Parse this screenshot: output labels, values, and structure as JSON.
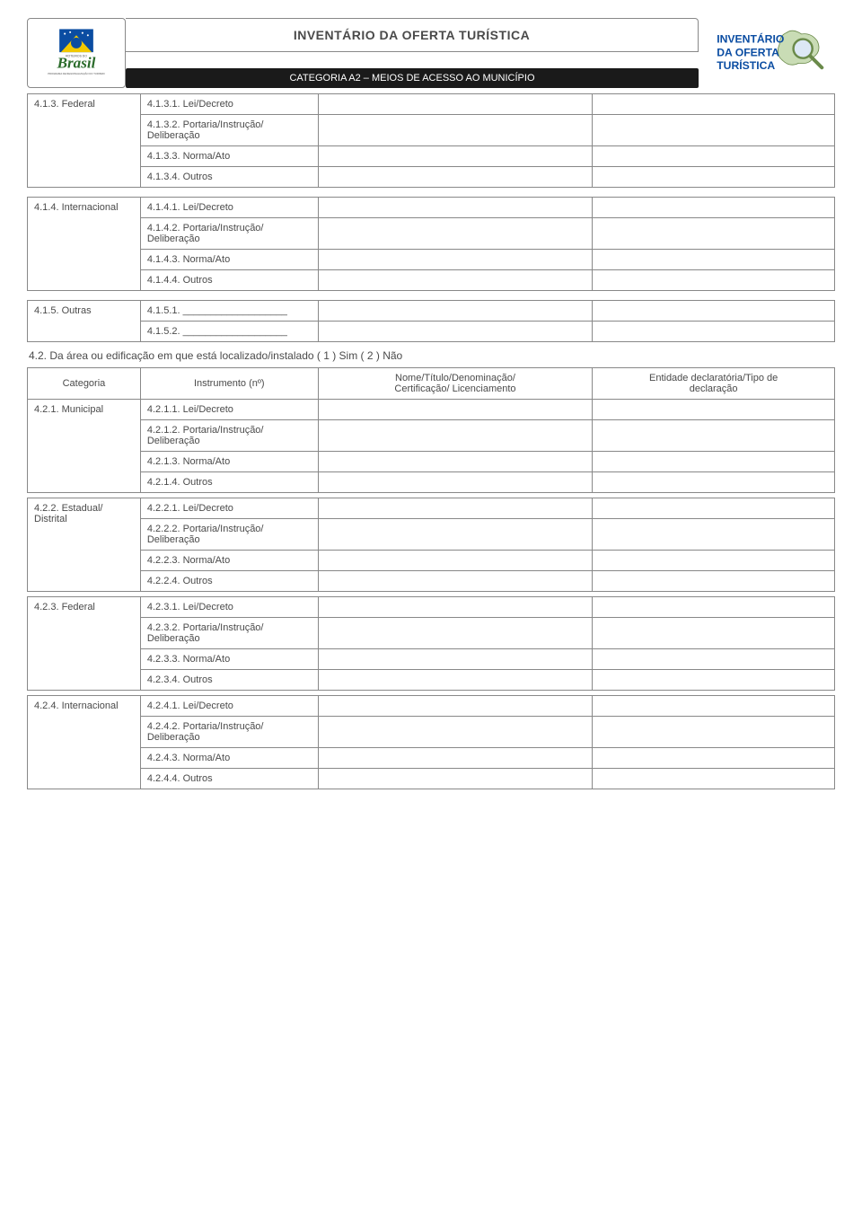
{
  "header": {
    "title": "INVENTÁRIO DA OFERTA TURÍSTICA",
    "subtitle": "CATEGORIA A2 – MEIOS DE ACESSO AO MUNICÍPIO",
    "right_logo_line1": "INVENTÁRIO",
    "right_logo_line2": "DA OFERTA",
    "right_logo_line3": "TURÍSTICA",
    "left_logo_text": "Brasil"
  },
  "section41": {
    "rows": [
      {
        "cat": "4.1.3.  Federal",
        "items": [
          "4.1.3.1. Lei/Decreto",
          "4.1.3.2. Portaria/Instrução/\n Deliberação",
          "4.1.3.3. Norma/Ato",
          "4.1.3.4. Outros"
        ]
      },
      {
        "cat": "4.1.4.  Internacional",
        "items": [
          "4.1.4.1. Lei/Decreto",
          "4.1.4.2. Portaria/Instrução/\nDeliberação",
          "4.1.4.3. Norma/Ato",
          "4.1.4.4. Outros"
        ]
      },
      {
        "cat": "4.1.5.  Outras",
        "items": [
          "4.1.5.1. ___________________",
          "4.1.5.2. ___________________"
        ]
      }
    ]
  },
  "section42": {
    "heading": "4.2. Da área ou edificação em que está localizado/instalado       ( 1 ) Sim       ( 2 ) Não",
    "headers": {
      "cat": "Categoria",
      "inst": "Instrumento (nº)",
      "nome": "Nome/Título/Denominação/\nCertificação/ Licenciamento",
      "ent": "Entidade declaratória/Tipo de\ndeclaração"
    },
    "groups": [
      {
        "cat": "4.2.1.  Municipal",
        "items": [
          "4.2.1.1. Lei/Decreto",
          "4.2.1.2. Portaria/Instrução/\nDeliberação",
          "4.2.1.3. Norma/Ato",
          "4.2.1.4. Outros"
        ]
      },
      {
        "cat": "4.2.2.  Estadual/\nDistrital",
        "items": [
          "4.2.2.1. Lei/Decreto",
          "4.2.2.2. Portaria/Instrução/\nDeliberação",
          "4.2.2.3. Norma/Ato",
          "4.2.2.4. Outros"
        ]
      },
      {
        "cat": "4.2.3.  Federal",
        "items": [
          "4.2.3.1. Lei/Decreto",
          "4.2.3.2. Portaria/Instrução/\nDeliberação",
          "4.2.3.3. Norma/Ato",
          "4.2.3.4. Outros"
        ]
      },
      {
        "cat": "4.2.4.  Internacional",
        "items": [
          "4.2.4.1. Lei/Decreto",
          "4.2.4.2. Portaria/Instrução/\nDeliberação",
          "4.2.4.3. Norma/Ato",
          "4.2.4.4. Outros"
        ]
      }
    ]
  },
  "colors": {
    "border": "#888888",
    "text": "#4a4a4a",
    "bar_bg": "#1a1a1a",
    "bar_text": "#ffffff"
  }
}
